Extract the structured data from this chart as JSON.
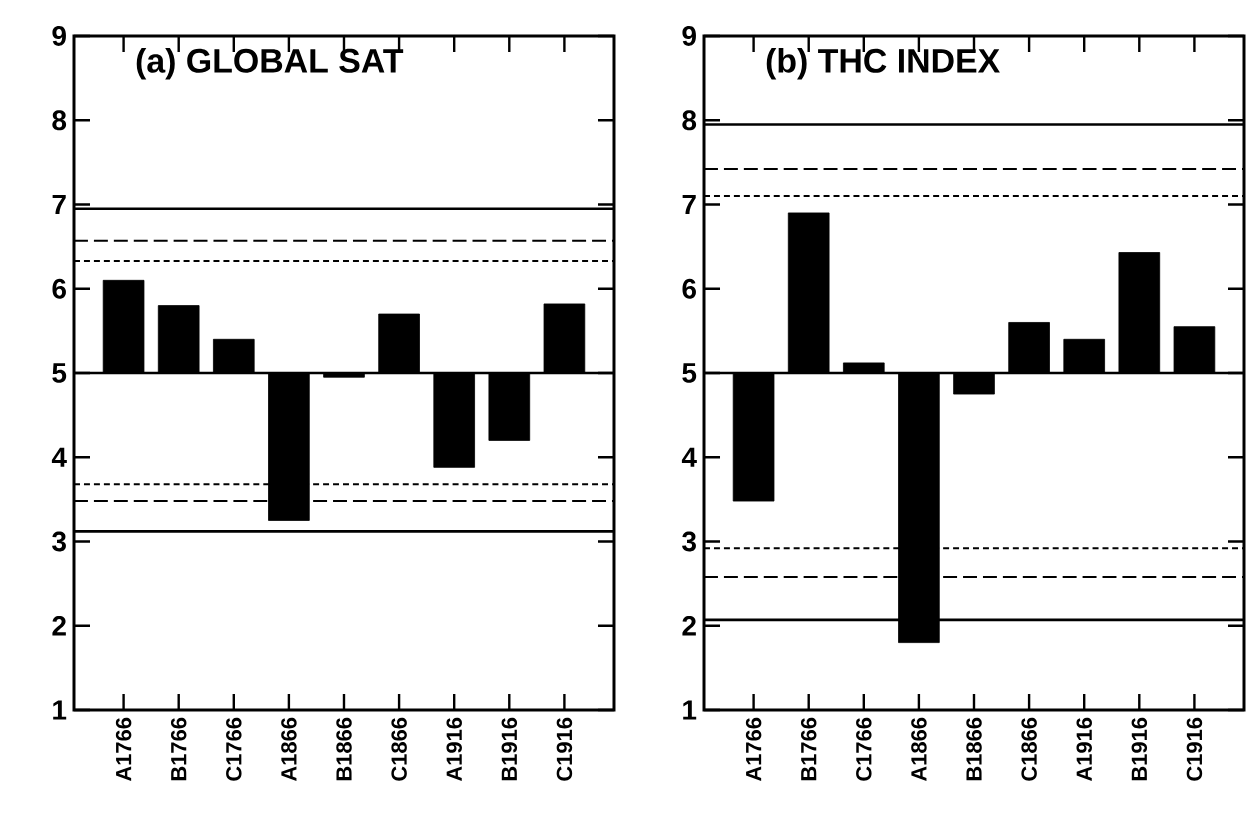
{
  "chart_data": [
    {
      "type": "bar",
      "title": "(a) GLOBAL SAT",
      "categories": [
        "A1766",
        "B1766",
        "C1766",
        "A1866",
        "B1866",
        "C1866",
        "A1916",
        "B1916",
        "C1916"
      ],
      "base": [
        5,
        5,
        5,
        5,
        5,
        5,
        5,
        5,
        5
      ],
      "values": [
        1.1,
        0.8,
        0.4,
        -1.75,
        -0.05,
        0.7,
        -1.12,
        -0.8,
        0.82
      ],
      "color": "#000000",
      "ylim": [
        1,
        9
      ],
      "yticks": [
        1,
        2,
        3,
        4,
        5,
        6,
        7,
        8,
        9
      ],
      "ref_lines": [
        {
          "axis": "y",
          "value": 6.95,
          "line_style": "solid"
        },
        {
          "axis": "y",
          "value": 6.57,
          "line_style": "dashed"
        },
        {
          "axis": "y",
          "value": 6.33,
          "line_style": "dotted"
        },
        {
          "axis": "y",
          "value": 5,
          "line_style": "solid"
        },
        {
          "axis": "y",
          "value": 3.68,
          "line_style": "dotted"
        },
        {
          "axis": "y",
          "value": 3.48,
          "line_style": "dashed"
        },
        {
          "axis": "y",
          "value": 3.12,
          "line_style": "solid"
        }
      ]
    },
    {
      "type": "bar",
      "title": "(b) THC INDEX",
      "categories": [
        "A1766",
        "B1766",
        "C1766",
        "A1866",
        "B1866",
        "C1866",
        "A1916",
        "B1916",
        "C1916"
      ],
      "base": [
        5,
        5,
        5,
        5,
        5,
        5,
        5,
        5,
        5
      ],
      "values": [
        -1.52,
        1.9,
        0.12,
        -3.2,
        -0.25,
        0.6,
        0.4,
        1.43,
        0.55
      ],
      "color": "#000000",
      "ylim": [
        1,
        9
      ],
      "yticks": [
        1,
        2,
        3,
        4,
        5,
        6,
        7,
        8,
        9
      ],
      "ref_lines": [
        {
          "axis": "y",
          "value": 7.95,
          "line_style": "solid"
        },
        {
          "axis": "y",
          "value": 7.42,
          "line_style": "dashed"
        },
        {
          "axis": "y",
          "value": 7.1,
          "line_style": "dotted"
        },
        {
          "axis": "y",
          "value": 5,
          "line_style": "solid"
        },
        {
          "axis": "y",
          "value": 2.92,
          "line_style": "dotted"
        },
        {
          "axis": "y",
          "value": 2.58,
          "line_style": "dashed"
        },
        {
          "axis": "y",
          "value": 2.07,
          "line_style": "solid"
        }
      ]
    }
  ]
}
